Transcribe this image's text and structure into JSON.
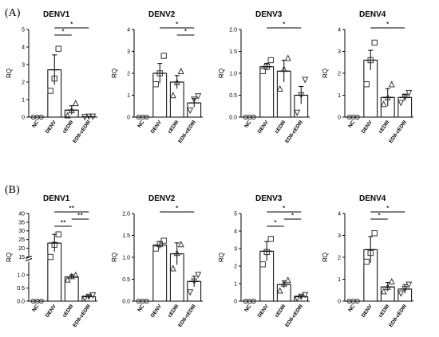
{
  "figure": {
    "rows": [
      {
        "label": "(A)"
      },
      {
        "label": "(B)"
      }
    ]
  },
  "chart_data": [
    {
      "type": "bar",
      "panel": "A",
      "title": "DENV1",
      "ylabel": "RQ",
      "categories": [
        "NC",
        "DENV",
        "cEDIII",
        "EDII-cEDIII"
      ],
      "values": [
        0,
        2.7,
        0.4,
        0.02
      ],
      "error": [
        0,
        0.85,
        0.25,
        0.02
      ],
      "points": [
        [
          0,
          0,
          0
        ],
        [
          1.5,
          2.2,
          3.9
        ],
        [
          0.1,
          0.4,
          0.8
        ],
        [
          0,
          0.03,
          0.03
        ]
      ],
      "ylim": [
        0,
        5
      ],
      "yticks": [
        "0",
        "1",
        "2",
        "3",
        "4",
        "5"
      ],
      "significance": [
        {
          "from": 1,
          "to": 2,
          "label": "*"
        },
        {
          "from": 1,
          "to": 3,
          "label": "*"
        }
      ]
    },
    {
      "type": "bar",
      "panel": "A",
      "title": "DENV2",
      "ylabel": "RQ",
      "categories": [
        "NC",
        "DENV",
        "cEDIII",
        "EDII-cEDIII"
      ],
      "values": [
        0,
        2.0,
        1.6,
        0.65
      ],
      "error": [
        0,
        0.45,
        0.3,
        0.2
      ],
      "points": [
        [
          0,
          0,
          0
        ],
        [
          1.5,
          2.0,
          2.8
        ],
        [
          1.0,
          1.6,
          2.1
        ],
        [
          0.3,
          0.8,
          0.95
        ]
      ],
      "ylim": [
        0,
        4
      ],
      "yticks": [
        "0",
        "1",
        "2",
        "3",
        "4"
      ],
      "significance": [
        {
          "from": 1,
          "to": 3,
          "label": "*"
        },
        {
          "from": 2,
          "to": 3,
          "label": "*"
        }
      ]
    },
    {
      "type": "bar",
      "panel": "A",
      "title": "DENV3",
      "ylabel": "RQ",
      "categories": [
        "NC",
        "DENV",
        "cEDIII",
        "EDII-cEDIII"
      ],
      "values": [
        0,
        1.15,
        1.05,
        0.5
      ],
      "error": [
        0,
        0.08,
        0.25,
        0.2
      ],
      "points": [
        [
          0,
          0,
          0
        ],
        [
          1.05,
          1.15,
          1.3
        ],
        [
          0.65,
          1.1,
          1.35
        ],
        [
          0.1,
          0.5,
          0.85
        ]
      ],
      "ylim": [
        0,
        2.0
      ],
      "yticks": [
        "0.0",
        "0.5",
        "1.0",
        "1.5",
        "2.0"
      ],
      "significance": [
        {
          "from": 1,
          "to": 3,
          "label": "*"
        }
      ]
    },
    {
      "type": "bar",
      "panel": "A",
      "title": "DENV4",
      "ylabel": "RQ",
      "categories": [
        "NC",
        "DENV",
        "cEDIII",
        "EDII-cEDIII"
      ],
      "values": [
        0,
        2.6,
        0.9,
        0.9
      ],
      "error": [
        0,
        0.45,
        0.4,
        0.15
      ],
      "points": [
        [
          0,
          0,
          0
        ],
        [
          1.5,
          2.6,
          3.4
        ],
        [
          0.6,
          0.9,
          1.5
        ],
        [
          0.65,
          0.9,
          1.1
        ]
      ],
      "ylim": [
        0,
        4
      ],
      "yticks": [
        "0",
        "1",
        "2",
        "3",
        "4"
      ],
      "significance": [
        {
          "from": 1,
          "to": 3,
          "label": "*"
        }
      ]
    },
    {
      "type": "bar",
      "panel": "B",
      "title": "DENV1",
      "ylabel": "RQ",
      "categories": [
        "NC",
        "DENV",
        "cEDIII",
        "EDII-cEDIII"
      ],
      "values": [
        0,
        23,
        0.92,
        0.17
      ],
      "error": [
        0,
        5,
        0.08,
        0.05
      ],
      "points": [
        [
          0,
          0,
          0
        ],
        [
          15,
          22,
          28
        ],
        [
          0.82,
          0.95,
          1.0
        ],
        [
          0.1,
          0.17,
          0.22
        ]
      ],
      "ylim": [
        0,
        40
      ],
      "yticks": [
        "0.0",
        "0.5",
        "1.0",
        "15",
        "20",
        "25",
        "30",
        "35",
        "40"
      ],
      "axis_break": {
        "lower_max": 1.5,
        "upper_min": 15
      },
      "significance": [
        {
          "from": 1,
          "to": 2,
          "label": "**"
        },
        {
          "from": 1,
          "to": 3,
          "label": "**"
        },
        {
          "from": 2,
          "to": 3,
          "label": "**"
        }
      ]
    },
    {
      "type": "bar",
      "panel": "B",
      "title": "DENV2",
      "ylabel": "RQ",
      "categories": [
        "NC",
        "DENV",
        "cEDIII",
        "EDII-cEDIII"
      ],
      "values": [
        0,
        1.28,
        1.08,
        0.45
      ],
      "error": [
        0,
        0.08,
        0.25,
        0.12
      ],
      "points": [
        [
          0,
          0,
          0
        ],
        [
          1.2,
          1.3,
          1.38
        ],
        [
          0.75,
          1.1,
          1.3
        ],
        [
          0.2,
          0.45,
          0.6
        ]
      ],
      "ylim": [
        0,
        2.0
      ],
      "yticks": [
        "0.0",
        "0.5",
        "1.0",
        "1.5",
        "2.0"
      ],
      "significance": [
        {
          "from": 1,
          "to": 3,
          "label": "*"
        }
      ]
    },
    {
      "type": "bar",
      "panel": "B",
      "title": "DENV3",
      "ylabel": "RQ",
      "categories": [
        "NC",
        "DENV",
        "cEDIII",
        "EDII-cEDIII"
      ],
      "values": [
        0,
        2.85,
        0.95,
        0.25
      ],
      "error": [
        0,
        0.55,
        0.2,
        0.08
      ],
      "points": [
        [
          0,
          0,
          0
        ],
        [
          2.1,
          2.8,
          3.55
        ],
        [
          0.6,
          1.0,
          1.2
        ],
        [
          0.15,
          0.25,
          0.35
        ]
      ],
      "ylim": [
        0,
        5
      ],
      "yticks": [
        "0",
        "1",
        "2",
        "3",
        "4",
        "5"
      ],
      "significance": [
        {
          "from": 1,
          "to": 2,
          "label": "*"
        },
        {
          "from": 1,
          "to": 3,
          "label": "*"
        },
        {
          "from": 2,
          "to": 3,
          "label": "*"
        }
      ]
    },
    {
      "type": "bar",
      "panel": "B",
      "title": "DENV4",
      "ylabel": "RQ",
      "categories": [
        "NC",
        "DENV",
        "cEDIII",
        "EDII-cEDIII"
      ],
      "values": [
        0,
        2.35,
        0.65,
        0.55
      ],
      "error": [
        0,
        0.6,
        0.2,
        0.2
      ],
      "points": [
        [
          0,
          0,
          0
        ],
        [
          1.8,
          2.2,
          3.1
        ],
        [
          0.45,
          0.65,
          0.9
        ],
        [
          0.35,
          0.55,
          0.75
        ]
      ],
      "ylim": [
        0,
        4
      ],
      "yticks": [
        "0",
        "1",
        "2",
        "3",
        "4"
      ],
      "significance": [
        {
          "from": 1,
          "to": 2,
          "label": "*"
        },
        {
          "from": 1,
          "to": 3,
          "label": "*"
        }
      ]
    }
  ]
}
